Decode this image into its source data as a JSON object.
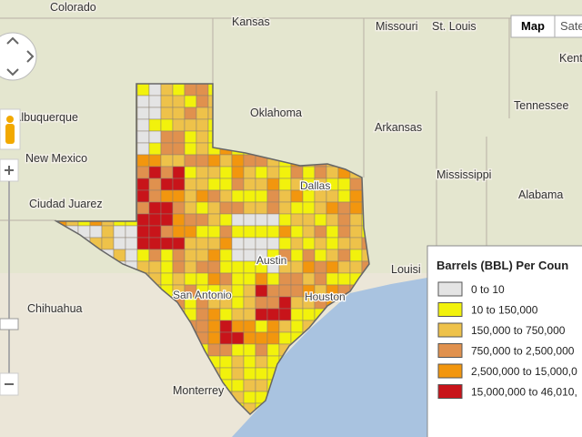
{
  "map_labels": [
    "Colorado",
    "Kansas",
    "Missouri",
    "St. Louis",
    "Kent",
    "Albuquerque",
    "Oklahoma",
    "Tennessee",
    "Arkansas",
    "New Mexico",
    "Mississippi",
    "Alabama",
    "Ciudad Juarez",
    "Louisi",
    "Chihuahua",
    "San Antonio",
    "Houston",
    "Dallas",
    "Austin",
    "Monterrey"
  ],
  "map_type_buttons": [
    "Map",
    "Sate"
  ],
  "legend": {
    "title": "Barrels (BBL) Per Coun",
    "items": [
      {
        "label": "0 to 10",
        "color": "#e4e4e4"
      },
      {
        "label": "10 to 150,000",
        "color": "#f2f20c"
      },
      {
        "label": "150,000 to 750,000",
        "color": "#eec24a"
      },
      {
        "label": "750,000 to 2,500,000",
        "color": "#e0914e"
      },
      {
        "label": "2,500,000 to 15,000,0",
        "color": "#f2960e"
      },
      {
        "label": "15,000,000 to 46,010,",
        "color": "#c8141a"
      }
    ]
  }
}
